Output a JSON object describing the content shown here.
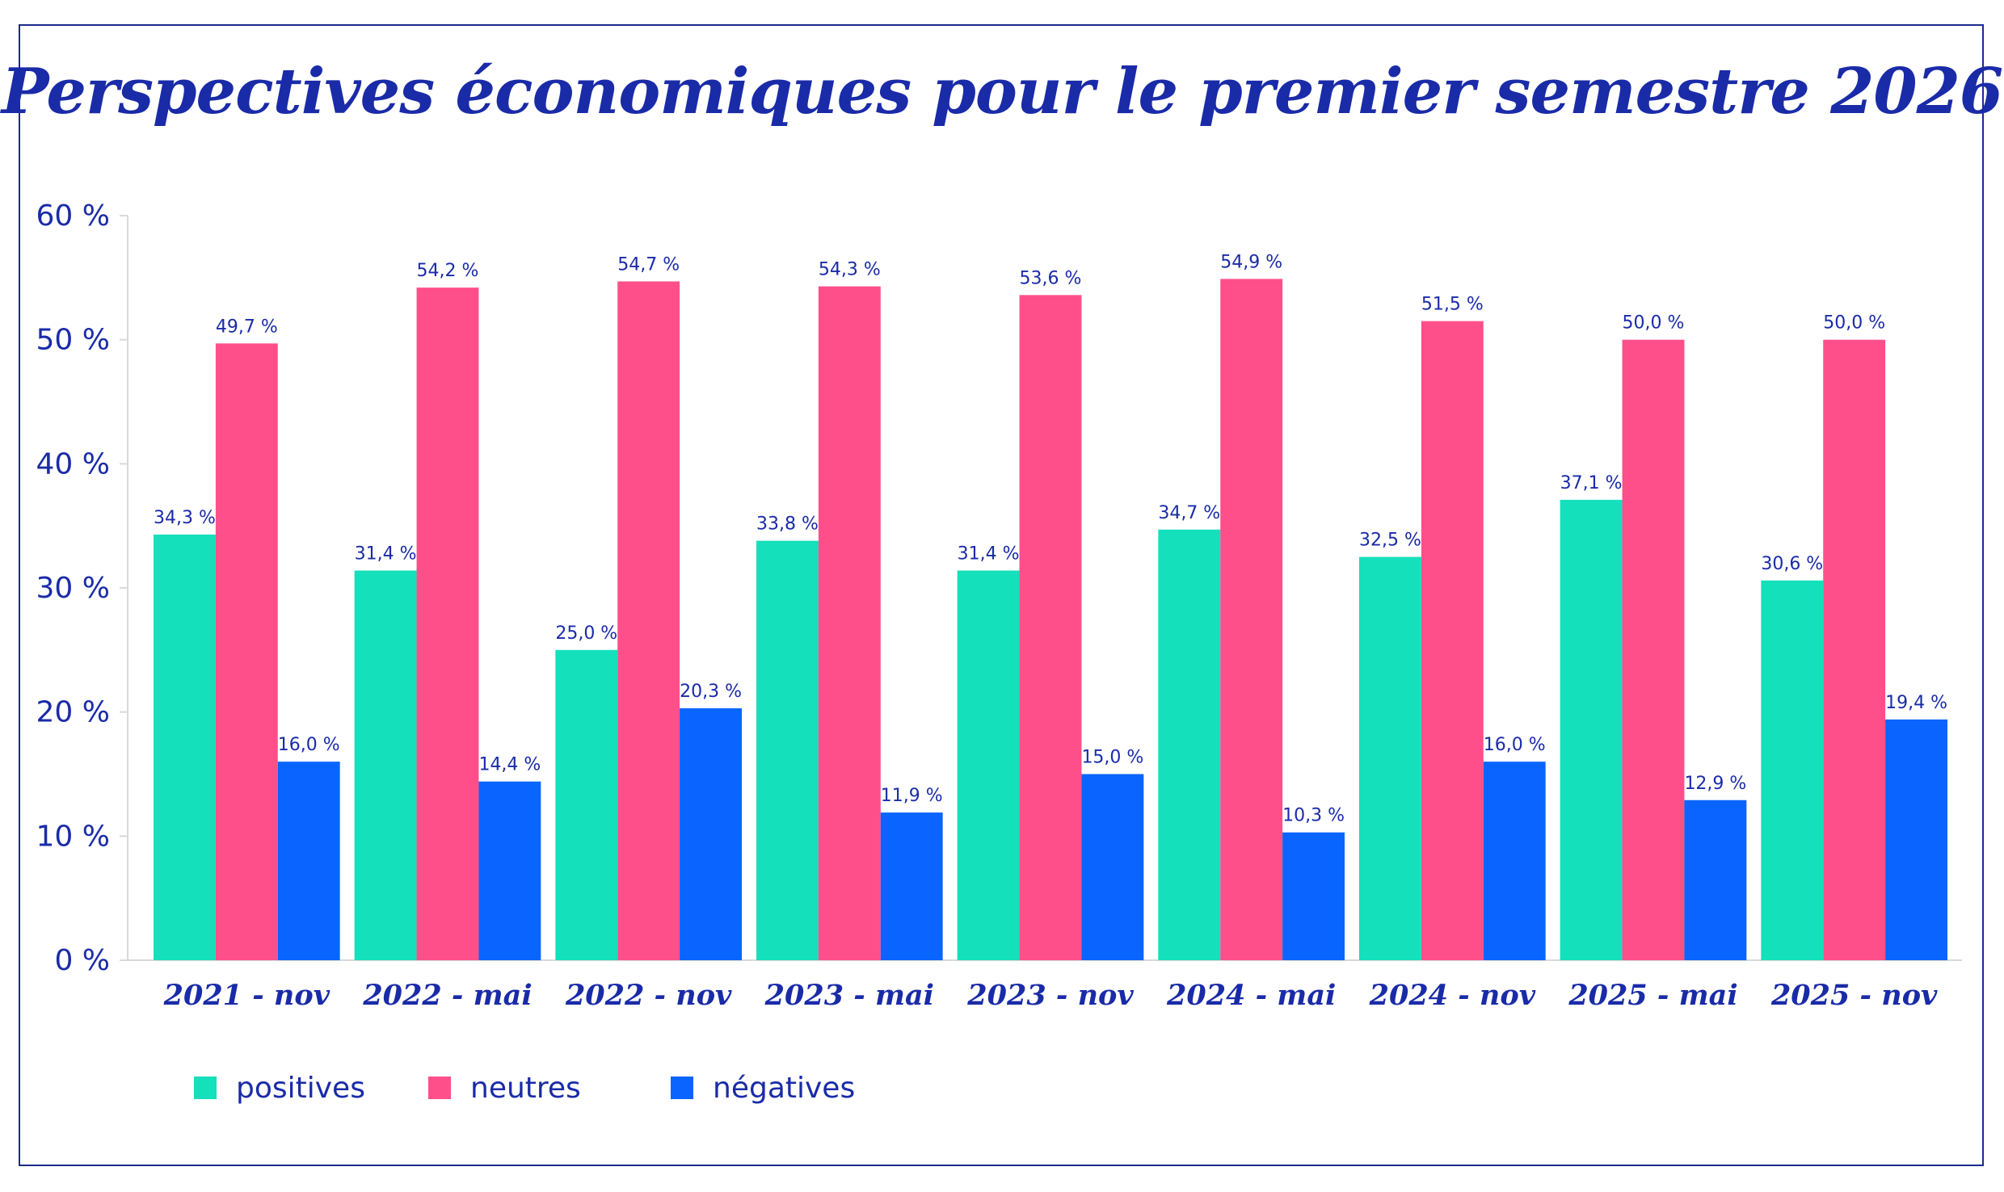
{
  "chart_data": {
    "type": "bar",
    "title": "Perspectives économiques pour le premier semestre 2026",
    "xlabel": "",
    "ylabel": "",
    "ylim": [
      0,
      60
    ],
    "yticks": [
      "0 %",
      "10 %",
      "20 %",
      "30 %",
      "40 %",
      "50 %",
      "60 %"
    ],
    "categories": [
      "2021 - nov",
      "2022 - mai",
      "2022 - nov",
      "2023 - mai",
      "2023 - nov",
      "2024 - mai",
      "2024 - nov",
      "2025 - mai",
      "2025 - nov"
    ],
    "series": [
      {
        "name": "positives",
        "color": "#14e0bb",
        "values": [
          34.3,
          31.4,
          25.0,
          33.8,
          31.4,
          34.7,
          32.5,
          37.1,
          30.6
        ],
        "labels": [
          "34,3 %",
          "31,4 %",
          "25,0 %",
          "33,8 %",
          "31,4 %",
          "34,7 %",
          "32,5 %",
          "37,1 %",
          "30,6 %"
        ]
      },
      {
        "name": "neutres",
        "color": "#ff4f8b",
        "values": [
          49.7,
          54.2,
          54.7,
          54.3,
          53.6,
          54.9,
          51.5,
          50.0,
          50.0
        ],
        "labels": [
          "49,7 %",
          "54,2 %",
          "54,7 %",
          "54,3 %",
          "53,6 %",
          "54,9 %",
          "51,5 %",
          "50,0 %",
          "50,0 %"
        ]
      },
      {
        "name": "négatives",
        "color": "#0a64ff",
        "values": [
          16.0,
          14.4,
          20.3,
          11.9,
          15.0,
          10.3,
          16.0,
          12.9,
          19.4
        ],
        "labels": [
          "16,0 %",
          "14,4 %",
          "20,3 %",
          "11,9 %",
          "15,0 %",
          "10,3 %",
          "16,0 %",
          "12,9 %",
          "19,4 %"
        ]
      }
    ],
    "legend_position": "bottom-left",
    "grid": false
  }
}
